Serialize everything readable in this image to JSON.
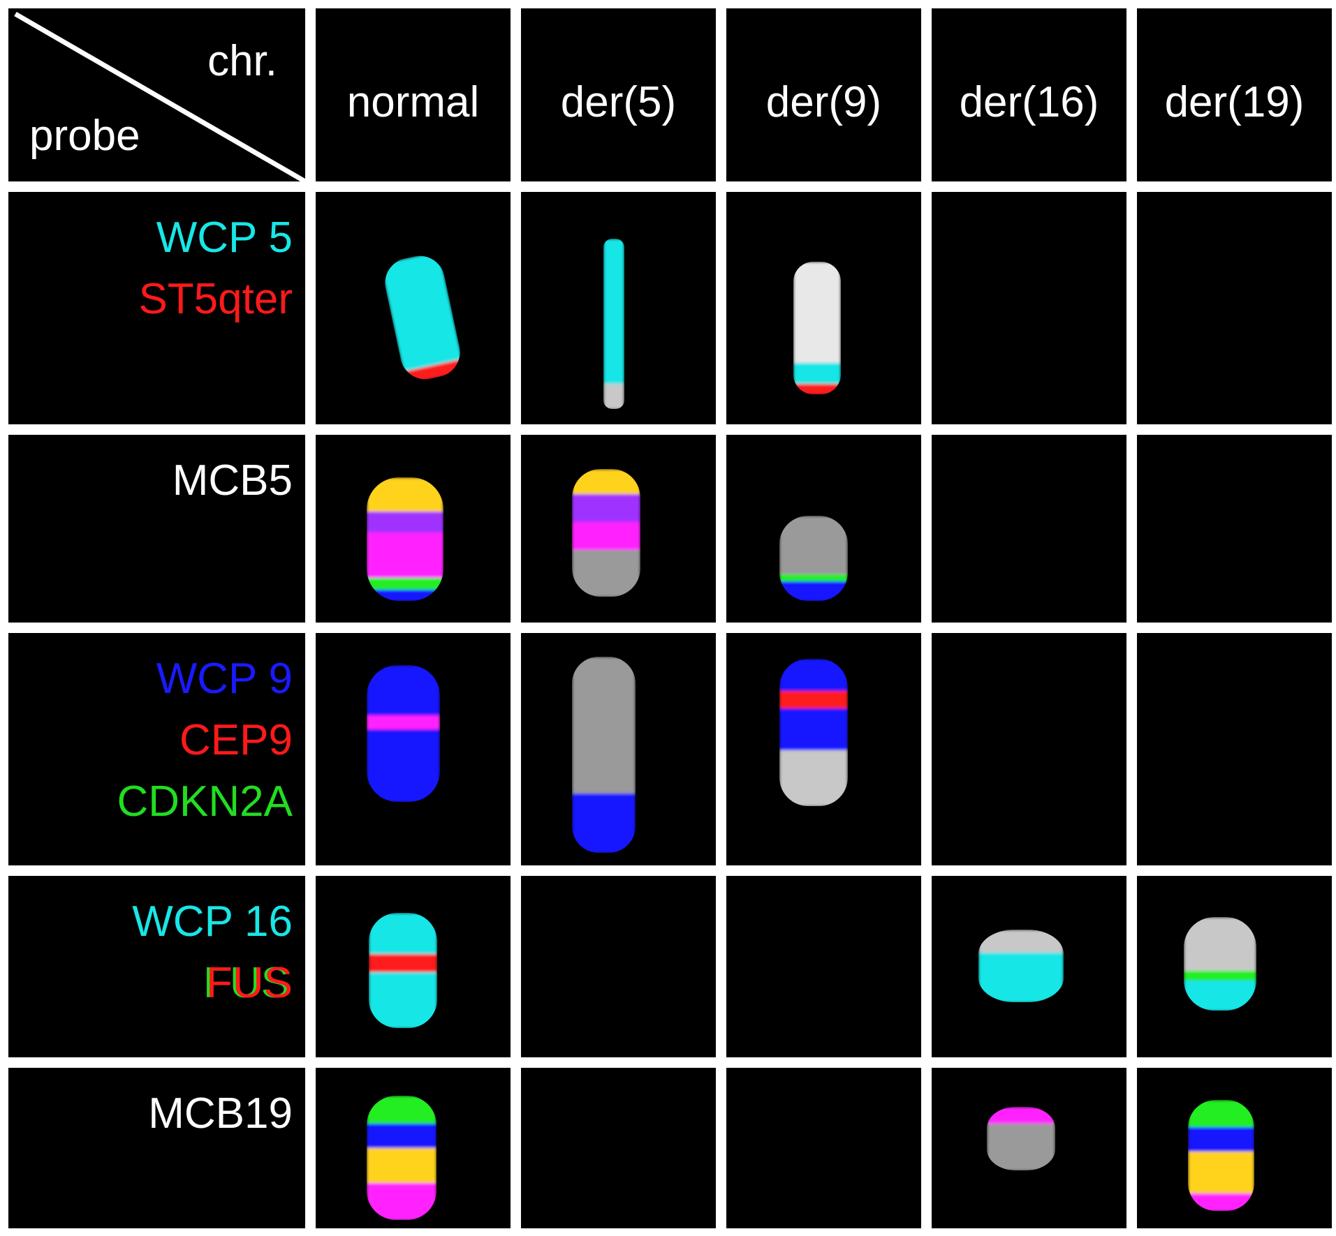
{
  "header": {
    "chr": "chr.",
    "probe": "probe"
  },
  "columns": [
    "normal",
    "der(5)",
    "der(9)",
    "der(16)",
    "der(19)"
  ],
  "rows": [
    {
      "probes": [
        {
          "text": "WCP 5",
          "color": "#19e6e6"
        },
        {
          "text": "ST5qter",
          "color": "#ff1a1a"
        }
      ]
    },
    {
      "probes": [
        {
          "text": "MCB5",
          "color": "#ffffff"
        }
      ]
    },
    {
      "probes": [
        {
          "text": "WCP 9",
          "color": "#1a1aff"
        },
        {
          "text": "CEP9",
          "color": "#ff1a1a"
        },
        {
          "text": "CDKN2A",
          "color": "#22dd22"
        }
      ]
    },
    {
      "probes": [
        {
          "text": "WCP 16",
          "color": "#19e6e6"
        },
        {
          "text": "FUS",
          "color": "#ff1a1a"
        }
      ]
    },
    {
      "probes": [
        {
          "text": "MCB19",
          "color": "#ffffff"
        }
      ]
    }
  ]
}
